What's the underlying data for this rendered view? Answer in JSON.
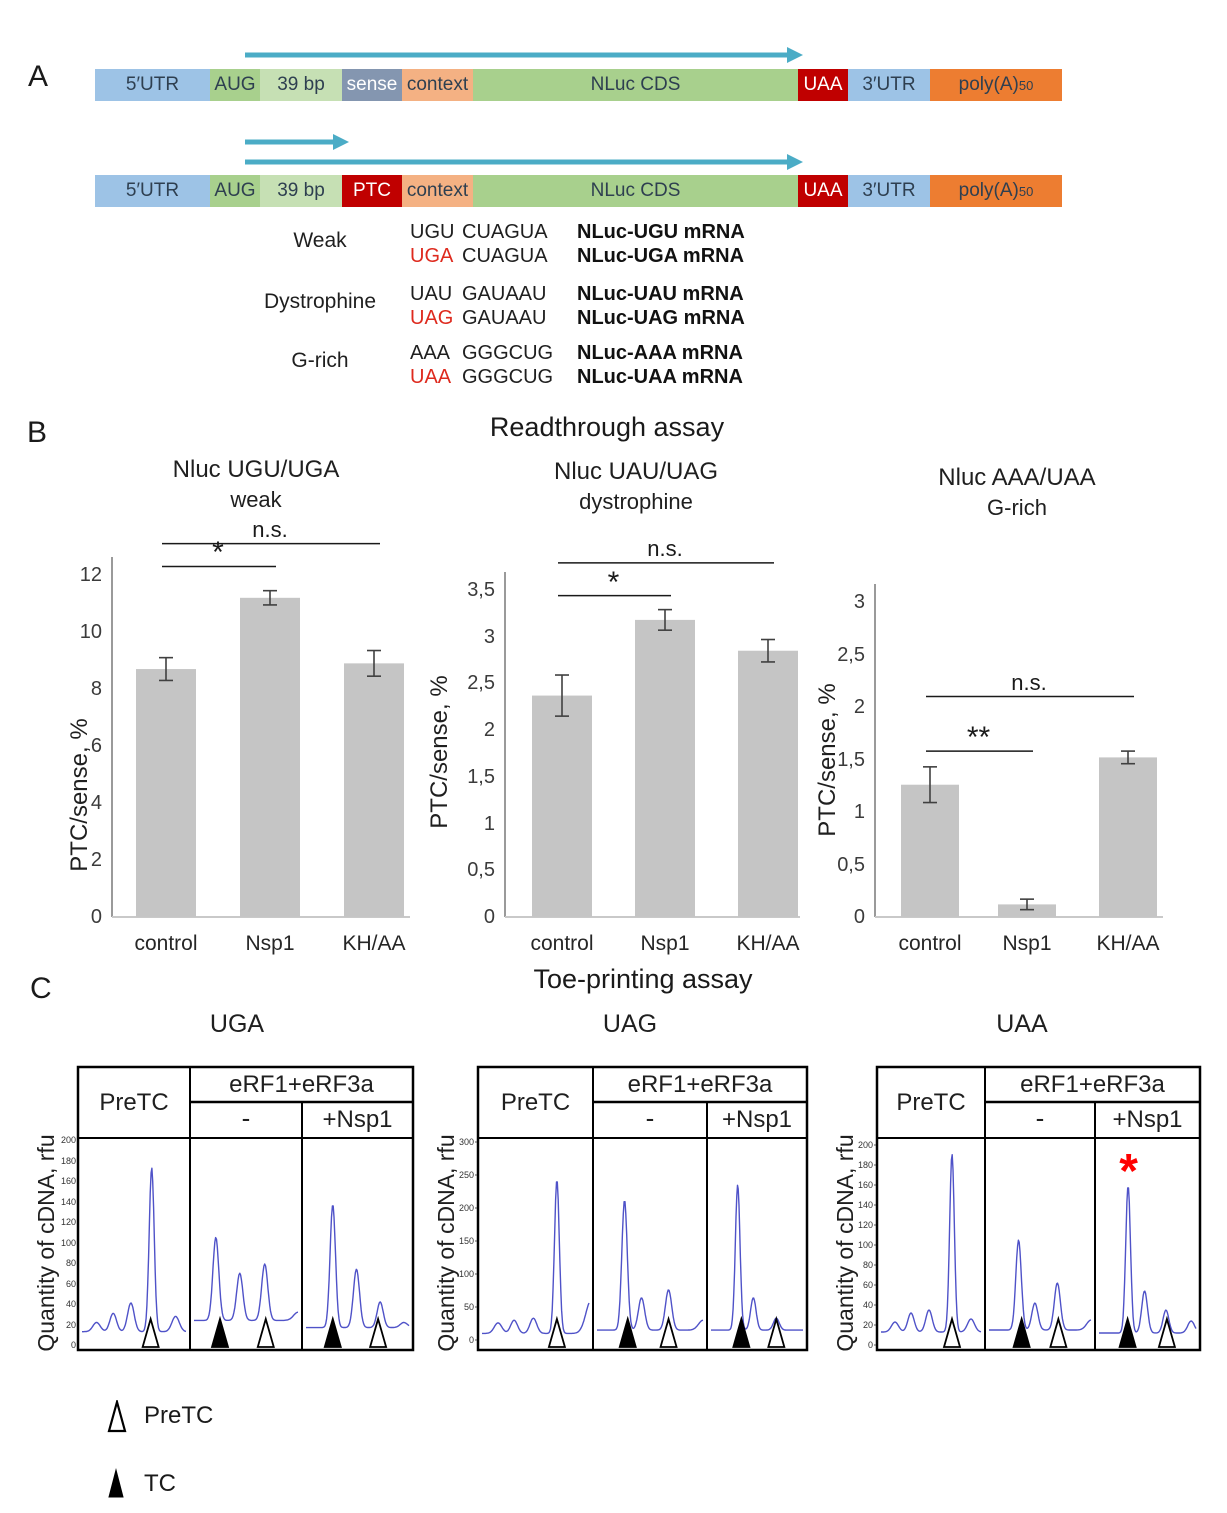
{
  "figure": {
    "panel_a_label": "A",
    "panel_b_label": "B",
    "panel_c_label": "C"
  },
  "colors": {
    "utr_blue": "#9DC3E6",
    "aug_green": "#A8D08D",
    "spacer_green": "#C6E0B4",
    "sense_gray": "#8496B0",
    "context_peach": "#F4B183",
    "stop_red": "#C00000",
    "cds_green": "#A8D08D",
    "polya_orange": "#ED7D31",
    "arrow_teal": "#4BACC6",
    "bar_gray": "#C5C5C5",
    "trace_blue": "#4F52C8",
    "codon_red": "#DE2A1E",
    "asterisk_red": "#FF0000"
  },
  "panel_a": {
    "constructs": [
      {
        "segments": [
          {
            "label": "5′UTR",
            "color": "utr_blue"
          },
          {
            "label": "AUG",
            "color": "aug_green"
          },
          {
            "label": "39 bp",
            "color": "spacer_green"
          },
          {
            "label": "sense",
            "color": "sense_gray",
            "light": true
          },
          {
            "label": "context",
            "color": "context_peach"
          },
          {
            "label": "NLuc CDS",
            "color": "cds_green"
          },
          {
            "label": "UAA",
            "color": "stop_red",
            "light": true
          },
          {
            "label": "3′UTR",
            "color": "utr_blue"
          },
          {
            "label": "poly(A)",
            "sub": "50",
            "color": "polya_orange"
          }
        ]
      },
      {
        "segments": [
          {
            "label": "5′UTR",
            "color": "utr_blue"
          },
          {
            "label": "AUG",
            "color": "aug_green"
          },
          {
            "label": "39 bp",
            "color": "spacer_green"
          },
          {
            "label": "PTC",
            "color": "stop_red",
            "light": true
          },
          {
            "label": "context",
            "color": "context_peach"
          },
          {
            "label": "NLuc CDS",
            "color": "cds_green"
          },
          {
            "label": "UAA",
            "color": "stop_red",
            "light": true
          },
          {
            "label": "3′UTR",
            "color": "utr_blue"
          },
          {
            "label": "poly(A)",
            "sub": "50",
            "color": "polya_orange"
          }
        ]
      }
    ],
    "codon_groups": [
      {
        "name": "Weak",
        "rows": [
          {
            "stop": "UGU",
            "red": false,
            "context": "CUAGUA",
            "mrna": "NLuc-UGU mRNA"
          },
          {
            "stop": "UGA",
            "red": true,
            "context": "CUAGUA",
            "mrna": "NLuc-UGA mRNA"
          }
        ]
      },
      {
        "name": "Dystrophine",
        "rows": [
          {
            "stop": "UAU",
            "red": false,
            "context": "GAUAAU",
            "mrna": "NLuc-UAU mRNA"
          },
          {
            "stop": "UAG",
            "red": true,
            "context": "GAUAAU",
            "mrna": "NLuc-UAG mRNA"
          }
        ]
      },
      {
        "name": "G-rich",
        "rows": [
          {
            "stop": "AAA",
            "red": false,
            "context": "GGGCUG",
            "mrna": "NLuc-AAA mRNA"
          },
          {
            "stop": "UAA",
            "red": true,
            "context": "GGGCUG",
            "mrna": "NLuc-UAA mRNA"
          }
        ]
      }
    ]
  },
  "panel_b": {
    "title": "Readthrough assay"
  },
  "panel_c": {
    "title": "Toe-printing assay",
    "ylabel": "Quantity of cDNA, rfu",
    "header": {
      "pretc": "PreTC",
      "erf": "eRF1+eRF3a",
      "minus": "-",
      "plus": "+Nsp1"
    },
    "legend": [
      {
        "marker": "open",
        "label": "PreTC"
      },
      {
        "marker": "filled",
        "label": "TC"
      }
    ]
  },
  "chart_data": [
    {
      "type": "bar",
      "title": "Nluc UGU/UGA",
      "subtitle": "weak",
      "ylabel": "PTC/sense, %",
      "categories": [
        "control",
        "Nsp1",
        "KH/AA"
      ],
      "values": [
        8.7,
        11.2,
        8.9
      ],
      "errors": [
        0.4,
        0.25,
        0.45
      ],
      "ylim": [
        0,
        12
      ],
      "yticks": [
        "12",
        "10",
        "8",
        "6",
        "4",
        "2",
        "0"
      ],
      "significance": [
        {
          "label": "*",
          "pair": [
            0,
            1
          ],
          "y": 12.3
        },
        {
          "label": "n.s.",
          "pair": [
            0,
            2
          ],
          "y": 13.1
        }
      ]
    },
    {
      "type": "bar",
      "title": "Nluc UAU/UAG",
      "subtitle": "dystrophine",
      "ylabel": "PTC/sense, %",
      "categories": [
        "control",
        "Nsp1",
        "KH/AA"
      ],
      "values": [
        2.37,
        3.18,
        2.85
      ],
      "errors": [
        0.22,
        0.11,
        0.12
      ],
      "ylim": [
        0,
        3.5
      ],
      "yticks": [
        "3,5",
        "3",
        "2,5",
        "2",
        "1,5",
        "1",
        "0,5",
        "0"
      ],
      "significance": [
        {
          "label": "*",
          "pair": [
            0,
            1
          ],
          "y": 3.44
        },
        {
          "label": "n.s.",
          "pair": [
            0,
            2
          ],
          "y": 3.79
        }
      ]
    },
    {
      "type": "bar",
      "title": "Nluc AAA/UAA",
      "subtitle": "G-rich",
      "ylabel": "PTC/sense, %",
      "categories": [
        "control",
        "Nsp1",
        "KH/AA"
      ],
      "values": [
        1.26,
        0.12,
        1.52
      ],
      "errors": [
        0.17,
        0.05,
        0.06
      ],
      "ylim": [
        0,
        3
      ],
      "yticks": [
        "3",
        "2,5",
        "2",
        "1,5",
        "1",
        "0,5",
        "0"
      ],
      "significance": [
        {
          "label": "**",
          "pair": [
            0,
            1
          ],
          "y": 1.58
        },
        {
          "label": "n.s.",
          "pair": [
            0,
            2
          ],
          "y": 2.1
        }
      ]
    },
    {
      "type": "line",
      "title": "UGA",
      "ylabel": "Quantity of cDNA, rfu",
      "ylim": [
        0,
        200
      ],
      "yticks": [
        "200",
        "180",
        "160",
        "140",
        "120",
        "100",
        "80",
        "60",
        "40",
        "20",
        "0"
      ],
      "lanes": [
        {
          "name": "PreTC",
          "baseline": 13,
          "peaks": [
            [
              0.14,
              9,
              0.05
            ],
            [
              0.3,
              18,
              0.045
            ],
            [
              0.47,
              28,
              0.045
            ],
            [
              0.67,
              160,
              0.034
            ],
            [
              0.9,
              15,
              0.05
            ]
          ],
          "markers": [
            {
              "type": "open",
              "x": 0.66
            }
          ]
        },
        {
          "name": "-",
          "baseline": 24,
          "peaks": [
            [
              0.21,
              81,
              0.04
            ],
            [
              0.44,
              46,
              0.042
            ],
            [
              0.68,
              55,
              0.042
            ],
            [
              1.0,
              8,
              0.06
            ]
          ],
          "markers": [
            {
              "type": "filled",
              "x": 0.25
            },
            {
              "type": "open",
              "x": 0.69
            }
          ]
        },
        {
          "name": "+Nsp1",
          "baseline": 17,
          "peaks": [
            [
              0.26,
              120,
              0.037
            ],
            [
              0.49,
              57,
              0.042
            ],
            [
              0.72,
              25,
              0.042
            ],
            [
              0.95,
              5,
              0.05
            ]
          ],
          "markers": [
            {
              "type": "filled",
              "x": 0.26
            },
            {
              "type": "open",
              "x": 0.7
            }
          ]
        }
      ]
    },
    {
      "type": "line",
      "title": "UAG",
      "ylabel": "Quantity of cDNA, rfu",
      "ylim": [
        0,
        300
      ],
      "yticks": [
        "300",
        "250",
        "200",
        "150",
        "100",
        "50",
        "0"
      ],
      "lanes": [
        {
          "name": "PreTC",
          "baseline": 10,
          "peaks": [
            [
              0.15,
              16,
              0.05
            ],
            [
              0.3,
              20,
              0.045
            ],
            [
              0.48,
              23,
              0.045
            ],
            [
              0.7,
              233,
              0.032
            ],
            [
              1.02,
              50,
              0.07
            ]
          ],
          "markers": [
            {
              "type": "open",
              "x": 0.7
            }
          ]
        },
        {
          "name": "-",
          "baseline": 15,
          "peaks": [
            [
              0.26,
              197,
              0.036
            ],
            [
              0.42,
              49,
              0.042
            ],
            [
              0.675,
              61,
              0.042
            ],
            [
              1.0,
              15,
              0.06
            ]
          ],
          "markers": [
            {
              "type": "filled",
              "x": 0.29
            },
            {
              "type": "open",
              "x": 0.675
            }
          ]
        },
        {
          "name": "+Nsp1",
          "baseline": 15,
          "peaks": [
            [
              0.29,
              220,
              0.036
            ],
            [
              0.46,
              49,
              0.042
            ],
            [
              0.71,
              18,
              0.045
            ]
          ],
          "markers": [
            {
              "type": "filled",
              "x": 0.33
            },
            {
              "type": "open",
              "x": 0.71
            }
          ]
        }
      ]
    },
    {
      "type": "line",
      "title": "UAA",
      "ylabel": "Quantity of cDNA, rfu",
      "ylim": [
        0,
        200
      ],
      "yticks": [
        "200",
        "180",
        "160",
        "140",
        "120",
        "100",
        "80",
        "60",
        "40",
        "20",
        "0"
      ],
      "annotation": {
        "label": "*",
        "lane": 2,
        "x": 0.305
      },
      "lanes": [
        {
          "name": "PreTC",
          "baseline": 13,
          "peaks": [
            [
              0.14,
              10,
              0.05
            ],
            [
              0.3,
              19,
              0.045
            ],
            [
              0.48,
              22,
              0.045
            ],
            [
              0.71,
              178,
              0.033
            ],
            [
              0.9,
              13,
              0.05
            ]
          ],
          "markers": [
            {
              "type": "open",
              "x": 0.71
            }
          ]
        },
        {
          "name": "-",
          "baseline": 15,
          "peaks": [
            [
              0.29,
              90,
              0.038
            ],
            [
              0.45,
              27,
              0.042
            ],
            [
              0.67,
              47,
              0.042
            ],
            [
              1.0,
              10,
              0.06
            ]
          ],
          "markers": [
            {
              "type": "filled",
              "x": 0.32
            },
            {
              "type": "open",
              "x": 0.68
            }
          ]
        },
        {
          "name": "+Nsp1",
          "baseline": 12,
          "peaks": [
            [
              0.3,
              147,
              0.035
            ],
            [
              0.47,
              42,
              0.042
            ],
            [
              0.69,
              23,
              0.042
            ],
            [
              0.95,
              12,
              0.05
            ]
          ],
          "markers": [
            {
              "type": "filled",
              "x": 0.295
            },
            {
              "type": "open",
              "x": 0.7
            }
          ]
        }
      ]
    }
  ]
}
